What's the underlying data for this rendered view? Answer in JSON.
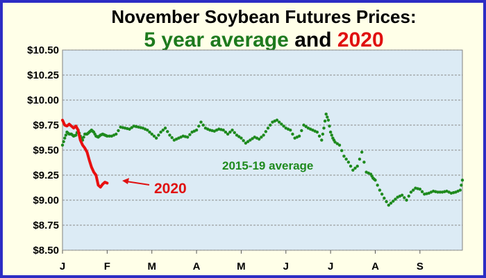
{
  "chart_data": {
    "type": "line",
    "title_line1": "November Soybean Futures Prices:",
    "title_line2_parts": [
      {
        "text": "5 year average",
        "color": "#1e7a1e"
      },
      {
        "text": " and ",
        "color": "#000000"
      },
      {
        "text": "2020",
        "color": "#e01010"
      }
    ],
    "xlabel": "",
    "ylabel": "",
    "ylim": [
      8.5,
      10.5
    ],
    "yticks": [
      8.5,
      8.75,
      9.0,
      9.25,
      9.5,
      9.75,
      10.0,
      10.25,
      10.5
    ],
    "ytick_labels": [
      "$8.50",
      "$8.75",
      "$9.00",
      "$9.25",
      "$9.50",
      "$9.75",
      "$10.00",
      "$10.25",
      "$10.50"
    ],
    "x_months": [
      "J",
      "F",
      "M",
      "A",
      "M",
      "J",
      "J",
      "A",
      "S"
    ],
    "xlim": [
      0,
      8.95
    ],
    "grid": true,
    "plot_background": "#dcebf5",
    "series": [
      {
        "name": "",
        "style": "dotted",
        "color": "#1e8a1e",
        "x": [
          0.0,
          0.05,
          0.1,
          0.15,
          0.2,
          0.25,
          0.3,
          0.35,
          0.4,
          0.45,
          0.5,
          0.55,
          0.6,
          0.65,
          0.7,
          0.75,
          0.8,
          0.85,
          0.9,
          0.95,
          1.0,
          1.1,
          1.2,
          1.3,
          1.4,
          1.5,
          1.6,
          1.7,
          1.8,
          1.9,
          2.0,
          2.1,
          2.2,
          2.3,
          2.4,
          2.5,
          2.6,
          2.7,
          2.8,
          2.9,
          3.0,
          3.1,
          3.2,
          3.3,
          3.4,
          3.5,
          3.6,
          3.7,
          3.8,
          3.9,
          4.0,
          4.1,
          4.2,
          4.3,
          4.4,
          4.5,
          4.6,
          4.7,
          4.8,
          4.9,
          5.0,
          5.1,
          5.2,
          5.3,
          5.4,
          5.5,
          5.6,
          5.7,
          5.8,
          5.85,
          5.9,
          5.95,
          6.0,
          6.05,
          6.1,
          6.2,
          6.3,
          6.4,
          6.5,
          6.6,
          6.7,
          6.8,
          6.9,
          6.95,
          7.0,
          7.1,
          7.2,
          7.3,
          7.4,
          7.5,
          7.6,
          7.7,
          7.8,
          7.9,
          8.0,
          8.1,
          8.2,
          8.3,
          8.4,
          8.5,
          8.6,
          8.7,
          8.8,
          8.9,
          8.95
        ],
        "y": [
          9.55,
          9.62,
          9.68,
          9.66,
          9.66,
          9.64,
          9.65,
          9.7,
          9.64,
          9.6,
          9.66,
          9.66,
          9.68,
          9.7,
          9.68,
          9.64,
          9.63,
          9.65,
          9.66,
          9.65,
          9.64,
          9.64,
          9.66,
          9.73,
          9.72,
          9.71,
          9.74,
          9.73,
          9.72,
          9.7,
          9.66,
          9.62,
          9.68,
          9.72,
          9.65,
          9.6,
          9.62,
          9.64,
          9.63,
          9.68,
          9.7,
          9.78,
          9.72,
          9.7,
          9.69,
          9.71,
          9.7,
          9.66,
          9.7,
          9.65,
          9.62,
          9.57,
          9.6,
          9.63,
          9.61,
          9.65,
          9.72,
          9.78,
          9.8,
          9.76,
          9.72,
          9.7,
          9.62,
          9.64,
          9.75,
          9.72,
          9.7,
          9.68,
          9.6,
          9.72,
          9.86,
          9.8,
          9.68,
          9.62,
          9.58,
          9.55,
          9.44,
          9.38,
          9.3,
          9.34,
          9.48,
          9.28,
          9.26,
          9.22,
          9.2,
          9.1,
          9.02,
          8.95,
          8.99,
          9.03,
          9.05,
          9.0,
          9.08,
          9.12,
          9.11,
          9.06,
          9.07,
          9.09,
          9.08,
          9.08,
          9.09,
          9.07,
          9.08,
          9.1,
          9.2
        ]
      },
      {
        "name": "2020",
        "style": "solid",
        "color": "#e81010",
        "x": [
          0.0,
          0.05,
          0.1,
          0.15,
          0.2,
          0.25,
          0.3,
          0.35,
          0.4,
          0.45,
          0.5,
          0.55,
          0.6,
          0.65,
          0.7,
          0.75,
          0.8,
          0.85,
          0.9,
          0.95,
          1.0
        ],
        "y": [
          9.8,
          9.75,
          9.74,
          9.76,
          9.74,
          9.72,
          9.74,
          9.7,
          9.6,
          9.55,
          9.52,
          9.48,
          9.4,
          9.33,
          9.28,
          9.25,
          9.15,
          9.13,
          9.16,
          9.18,
          9.17
        ]
      }
    ],
    "annotations": [
      {
        "text": "2015-19 average",
        "color": "#1e8a1e"
      },
      {
        "text": "2020",
        "color": "#e01010"
      }
    ]
  }
}
